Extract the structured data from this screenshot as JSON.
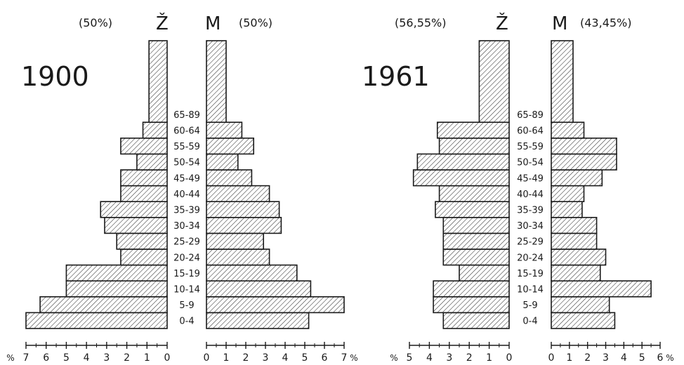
{
  "chart_data": [
    {
      "type": "bar",
      "title": "1900",
      "female_header": "Ž",
      "male_header": "M",
      "female_share": "(50%)",
      "male_share": "(50%)",
      "categories": [
        "0-4",
        "5-9",
        "10-14",
        "15-19",
        "20-24",
        "25-29",
        "30-34",
        "35-39",
        "40-44",
        "45-49",
        "50-54",
        "55-59",
        "60-64",
        "65-89"
      ],
      "series": [
        {
          "name": "Ž",
          "values": [
            7.0,
            6.3,
            5.0,
            5.0,
            2.3,
            2.5,
            3.1,
            3.3,
            2.3,
            2.3,
            1.5,
            2.3,
            1.2,
            0.9
          ]
        },
        {
          "name": "M",
          "values": [
            5.2,
            7.0,
            5.3,
            4.6,
            3.2,
            2.9,
            3.8,
            3.7,
            3.2,
            2.3,
            1.6,
            2.4,
            1.8,
            1.0
          ]
        }
      ],
      "female_axis": {
        "ticks": [
          "7",
          "6",
          "5",
          "4",
          "3",
          "2",
          "1",
          "0"
        ],
        "unit": "%",
        "max": 7
      },
      "male_axis": {
        "ticks": [
          "0",
          "1",
          "2",
          "3",
          "4",
          "5",
          "6",
          "7"
        ],
        "unit": "%",
        "max": 7
      }
    },
    {
      "type": "bar",
      "title": "1961",
      "female_header": "Ž",
      "male_header": "M",
      "female_share": "(56,55%)",
      "male_share": "(43,45%)",
      "categories": [
        "0-4",
        "5-9",
        "10-14",
        "15-19",
        "20-24",
        "25-29",
        "30-34",
        "35-39",
        "40-44",
        "45-49",
        "50-54",
        "55-59",
        "60-64",
        "65-89"
      ],
      "series": [
        {
          "name": "Ž",
          "values": [
            3.3,
            3.8,
            3.8,
            2.5,
            3.3,
            3.3,
            3.3,
            3.7,
            3.5,
            4.8,
            4.6,
            3.5,
            3.6,
            1.5
          ]
        },
        {
          "name": "M",
          "values": [
            3.5,
            3.2,
            5.5,
            2.7,
            3.0,
            2.5,
            2.5,
            1.7,
            1.8,
            2.8,
            3.6,
            3.6,
            1.8,
            1.2
          ]
        }
      ],
      "female_axis": {
        "ticks": [
          "5",
          "4",
          "3",
          "2",
          "1",
          "0"
        ],
        "unit": "%",
        "max": 5
      },
      "male_axis": {
        "ticks": [
          "0",
          "1",
          "2",
          "3",
          "4",
          "5",
          "6"
        ],
        "unit": "%",
        "max": 6
      }
    }
  ]
}
